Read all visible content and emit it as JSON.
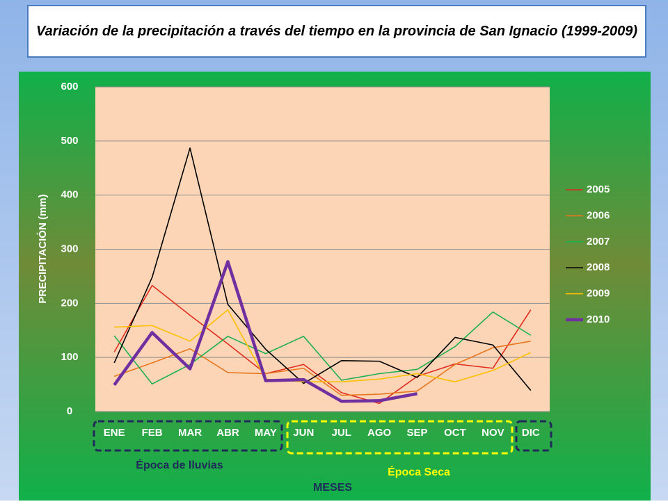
{
  "chart_data": {
    "type": "line",
    "title": "Variación de la precipitación a través del tiempo en la provincia de San Ignacio (1999-2009)",
    "y_label": "PRECIPITACIÓN (mm)",
    "x_label": "MESES",
    "annotations": [
      "Época de lluvias",
      "Época Seca"
    ],
    "categories": [
      "ENE",
      "FEB",
      "MAR",
      "ABR",
      "MAY",
      "JUN",
      "JUL",
      "AGO",
      "SEP",
      "OCT",
      "NOV",
      "DIC"
    ],
    "series": [
      {
        "name": "2005",
        "color": "#e02b1f",
        "values": [
          110,
          233,
          178,
          125,
          70,
          87,
          35,
          15,
          65,
          88,
          80,
          188
        ]
      },
      {
        "name": "2006",
        "color": "#e8761f",
        "values": [
          65,
          90,
          116,
          72,
          70,
          80,
          30,
          32,
          38,
          87,
          118,
          130
        ]
      },
      {
        "name": "2007",
        "color": "#20b050",
        "values": [
          140,
          51,
          87,
          139,
          107,
          139,
          58,
          70,
          78,
          120,
          184,
          141
        ]
      },
      {
        "name": "2008",
        "color": "#000000",
        "values": [
          90,
          248,
          487,
          198,
          115,
          52,
          94,
          93,
          63,
          137,
          123,
          39
        ]
      },
      {
        "name": "2009",
        "color": "#ffc000",
        "values": [
          156,
          159,
          130,
          188,
          60,
          55,
          55,
          60,
          70,
          55,
          76,
          109
        ]
      },
      {
        "name": "2010",
        "color": "#7030a0",
        "values": [
          49,
          146,
          79,
          277,
          57,
          59,
          19,
          20,
          33,
          null,
          null,
          null
        ]
      }
    ],
    "ylim": [
      0,
      600
    ],
    "yticks": [
      0,
      100,
      200,
      300,
      400,
      500,
      600
    ],
    "grid": true
  }
}
